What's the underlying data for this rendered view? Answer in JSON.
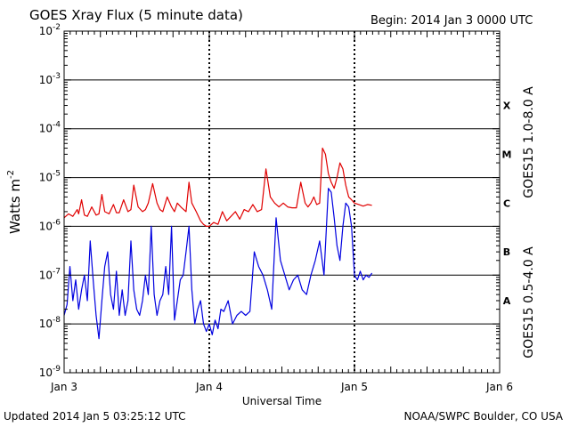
{
  "header": {
    "title": "GOES Xray Flux (5 minute data)",
    "begin": "Begin:  2014 Jan 3 0000 UTC"
  },
  "footer": {
    "updated": "Updated 2014 Jan  5 03:25:12 UTC",
    "credit": "NOAA/SWPC Boulder, CO USA"
  },
  "chart_data": {
    "type": "line",
    "title": "GOES Xray Flux (5 minute data)",
    "xlabel": "Universal Time",
    "ylabel": "Watts m",
    "ylabel_sup": "-2",
    "y_scale": "log",
    "ylim": [
      1e-09,
      0.01
    ],
    "xlim": [
      0,
      3
    ],
    "x_ticks": [
      {
        "label": "Jan 3",
        "x": 0
      },
      {
        "label": "Jan 4",
        "x": 1
      },
      {
        "label": "Jan 5",
        "x": 2
      },
      {
        "label": "Jan 6",
        "x": 3
      }
    ],
    "y_ticks": [
      {
        "base": "10",
        "exp": "-9",
        "value": 1e-09
      },
      {
        "base": "10",
        "exp": "-8",
        "value": 1e-08
      },
      {
        "base": "10",
        "exp": "-7",
        "value": 1e-07
      },
      {
        "base": "10",
        "exp": "-6",
        "value": 1e-06
      },
      {
        "base": "10",
        "exp": "-5",
        "value": 1e-05
      },
      {
        "base": "10",
        "exp": "-4",
        "value": 0.0001
      },
      {
        "base": "10",
        "exp": "-3",
        "value": 0.001
      },
      {
        "base": "10",
        "exp": "-2",
        "value": 0.01
      }
    ],
    "gridlines": [
      1e-08,
      1e-07,
      1e-06,
      1e-05,
      0.0001,
      0.001
    ],
    "flare_classes": [
      {
        "label": "X",
        "value": 0.0003
      },
      {
        "label": "M",
        "value": 3e-05
      },
      {
        "label": "C",
        "value": 3e-06
      },
      {
        "label": "B",
        "value": 3e-07
      },
      {
        "label": "A",
        "value": 3e-08
      }
    ],
    "series": [
      {
        "name": "GOES15 1.0-8.0 A",
        "color": "#e00000",
        "x": [
          0,
          0.03,
          0.06,
          0.09,
          0.1,
          0.12,
          0.14,
          0.16,
          0.19,
          0.22,
          0.24,
          0.26,
          0.28,
          0.31,
          0.34,
          0.36,
          0.38,
          0.41,
          0.44,
          0.46,
          0.48,
          0.51,
          0.54,
          0.56,
          0.58,
          0.61,
          0.64,
          0.66,
          0.68,
          0.71,
          0.74,
          0.76,
          0.78,
          0.81,
          0.84,
          0.86,
          0.88,
          0.91,
          0.94,
          0.96,
          0.98,
          1.0,
          1.03,
          1.06,
          1.09,
          1.12,
          1.15,
          1.18,
          1.21,
          1.24,
          1.27,
          1.3,
          1.33,
          1.36,
          1.39,
          1.42,
          1.45,
          1.48,
          1.51,
          1.54,
          1.57,
          1.6,
          1.63,
          1.66,
          1.68,
          1.7,
          1.72,
          1.74,
          1.76,
          1.78,
          1.8,
          1.82,
          1.84,
          1.86,
          1.88,
          1.9,
          1.92,
          1.94,
          1.96,
          1.98,
          2.0,
          2.03,
          2.06,
          2.09,
          2.12
        ],
        "y": [
          1.5e-06,
          1.8e-06,
          1.6e-06,
          2.2e-06,
          1.8e-06,
          3.5e-06,
          1.7e-06,
          1.6e-06,
          2.5e-06,
          1.7e-06,
          1.8e-06,
          4.5e-06,
          2e-06,
          1.8e-06,
          2.8e-06,
          1.9e-06,
          1.9e-06,
          3.5e-06,
          2e-06,
          2.2e-06,
          7e-06,
          2.5e-06,
          2e-06,
          2.2e-06,
          3e-06,
          7.5e-06,
          3e-06,
          2.2e-06,
          2e-06,
          4e-06,
          2.5e-06,
          2e-06,
          3e-06,
          2.4e-06,
          2e-06,
          8e-06,
          3e-06,
          2e-06,
          1.3e-06,
          1.1e-06,
          1e-06,
          1e-06,
          1.2e-06,
          1.1e-06,
          2e-06,
          1.3e-06,
          1.6e-06,
          2e-06,
          1.4e-06,
          2.2e-06,
          2e-06,
          2.8e-06,
          2e-06,
          2.2e-06,
          1.5e-05,
          4e-06,
          3e-06,
          2.5e-06,
          3e-06,
          2.5e-06,
          2.4e-06,
          2.4e-06,
          8e-06,
          3e-06,
          2.5e-06,
          3e-06,
          4e-06,
          2.8e-06,
          3e-06,
          4e-05,
          3e-05,
          1.2e-05,
          8e-06,
          6e-06,
          1e-05,
          2e-05,
          1.5e-05,
          7e-06,
          4e-06,
          3.5e-06,
          3e-06,
          2.8e-06,
          2.6e-06,
          2.8e-06,
          2.7e-06
        ]
      },
      {
        "name": "GOES15 0.5-4.0 A",
        "color": "#0000e0",
        "x": [
          0,
          0.02,
          0.04,
          0.06,
          0.08,
          0.1,
          0.12,
          0.14,
          0.16,
          0.18,
          0.2,
          0.22,
          0.24,
          0.26,
          0.28,
          0.3,
          0.32,
          0.34,
          0.36,
          0.38,
          0.4,
          0.42,
          0.44,
          0.46,
          0.48,
          0.5,
          0.52,
          0.54,
          0.56,
          0.58,
          0.6,
          0.62,
          0.64,
          0.66,
          0.68,
          0.7,
          0.72,
          0.74,
          0.76,
          0.78,
          0.8,
          0.82,
          0.84,
          0.86,
          0.88,
          0.9,
          0.92,
          0.94,
          0.96,
          0.98,
          1.0,
          1.02,
          1.04,
          1.06,
          1.08,
          1.1,
          1.13,
          1.16,
          1.19,
          1.22,
          1.25,
          1.28,
          1.31,
          1.34,
          1.37,
          1.4,
          1.43,
          1.46,
          1.49,
          1.52,
          1.55,
          1.58,
          1.61,
          1.64,
          1.67,
          1.7,
          1.73,
          1.76,
          1.79,
          1.82,
          1.84,
          1.86,
          1.88,
          1.9,
          1.92,
          1.94,
          1.96,
          1.98,
          2.0,
          2.02,
          2.04,
          2.06,
          2.08,
          2.1,
          2.12
        ],
        "y": [
          1.5e-08,
          2.5e-08,
          1.5e-07,
          3e-08,
          8e-08,
          2e-08,
          5e-08,
          1e-07,
          3e-08,
          5e-07,
          8e-08,
          1.5e-08,
          5e-09,
          3e-08,
          1.5e-07,
          3e-07,
          4e-08,
          2e-08,
          1.2e-07,
          1.5e-08,
          5e-08,
          1.5e-08,
          3e-08,
          5e-07,
          5e-08,
          2e-08,
          1.5e-08,
          3e-08,
          1e-07,
          4e-08,
          1e-06,
          4e-08,
          1.5e-08,
          3e-08,
          4e-08,
          1.5e-07,
          4e-08,
          1e-06,
          1.2e-08,
          3e-08,
          8e-08,
          1e-07,
          3e-07,
          1e-06,
          5e-08,
          1e-08,
          2e-08,
          3e-08,
          1e-08,
          7e-09,
          1e-08,
          6e-09,
          1.2e-08,
          8e-09,
          2e-08,
          1.8e-08,
          3e-08,
          1e-08,
          1.5e-08,
          1.8e-08,
          1.5e-08,
          1.8e-08,
          3e-07,
          1.5e-07,
          1e-07,
          5e-08,
          2e-08,
          1.5e-06,
          2e-07,
          1e-07,
          5e-08,
          8e-08,
          1e-07,
          5e-08,
          4e-08,
          1e-07,
          2e-07,
          5e-07,
          1e-07,
          6e-06,
          5e-06,
          1.5e-06,
          4e-07,
          2e-07,
          1e-06,
          3e-06,
          2.5e-06,
          1e-06,
          1e-07,
          8e-08,
          1.2e-07,
          8e-08,
          1e-07,
          9e-08,
          1.1e-07
        ]
      }
    ]
  }
}
